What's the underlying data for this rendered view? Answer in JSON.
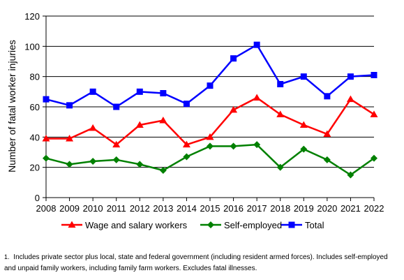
{
  "chart_data": {
    "type": "line",
    "title": "",
    "xlabel": "",
    "ylabel": "Number of fatal worker injuries",
    "ylim": [
      0,
      120
    ],
    "yticks": [
      0,
      20,
      40,
      60,
      80,
      100,
      120
    ],
    "grid": true,
    "legend_position": "bottom",
    "categories": [
      "2008",
      "2009",
      "2010",
      "2011",
      "2012",
      "2013",
      "2014",
      "2015",
      "2016",
      "2017",
      "2018",
      "2019",
      "2020",
      "2021",
      "2022"
    ],
    "series": [
      {
        "name": "Wage and salary workers",
        "color": "#ff0000",
        "marker": "triangle",
        "values": [
          39,
          39,
          46,
          35,
          48,
          51,
          35,
          40,
          58,
          66,
          55,
          48,
          42,
          65,
          55
        ]
      },
      {
        "name": "Self-employed",
        "color": "#008000",
        "marker": "diamond",
        "values": [
          26,
          22,
          24,
          25,
          22,
          18,
          27,
          34,
          34,
          35,
          20,
          32,
          25,
          15,
          26
        ]
      },
      {
        "name": "Total",
        "color": "#0000ff",
        "marker": "square",
        "values": [
          65,
          61,
          70,
          60,
          70,
          69,
          62,
          74,
          92,
          101,
          75,
          80,
          67,
          80,
          81
        ]
      }
    ]
  },
  "footnote": {
    "marker": "1.",
    "text": "Includes private sector plus local, state and federal government (including resident armed forces). Includes self-employed and unpaid family workers, including family farm workers. Excludes fatal illnesses."
  }
}
